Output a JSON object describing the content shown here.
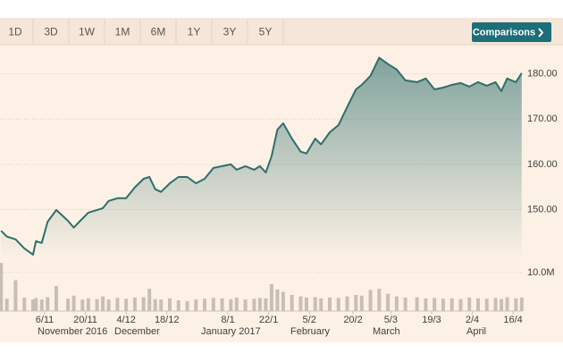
{
  "toolbar": {
    "ranges": [
      "1D",
      "3D",
      "1W",
      "1M",
      "6M",
      "1Y",
      "3Y",
      "5Y"
    ],
    "compare_button": "Comparisons"
  },
  "chart_data": {
    "type": "line",
    "x": [
      "22/10",
      "24/10",
      "27/10",
      "30/10",
      "2/11",
      "3/11",
      "5/11",
      "7/11",
      "10/11",
      "14/11",
      "16/11",
      "19/11",
      "21/11",
      "24/11",
      "26/11",
      "28/11",
      "1/12",
      "4/12",
      "7/12",
      "10/12",
      "12/12",
      "14/12",
      "16/12",
      "19/12",
      "22/12",
      "25/12",
      "28/12",
      "31/12",
      "3/1",
      "6/1",
      "9/1",
      "11/1",
      "14/1",
      "17/1",
      "19/1",
      "21/1",
      "23/1",
      "25/1",
      "27/1",
      "30/1",
      "2/2",
      "4/2",
      "7/2",
      "9/2",
      "12/2",
      "15/2",
      "18/2",
      "21/2",
      "23/2",
      "26/2",
      "1/3",
      "4/3",
      "7/3",
      "10/3",
      "14/3",
      "17/3",
      "20/3",
      "23/3",
      "26/3",
      "29/3",
      "1/4",
      "4/4",
      "7/4",
      "10/4",
      "12/4",
      "14/4",
      "17/4",
      "19/4"
    ],
    "values": [
      145.3,
      144.0,
      143.4,
      141.4,
      140.0,
      143.0,
      142.6,
      147.3,
      149.9,
      147.5,
      146.0,
      148.0,
      149.3,
      149.9,
      150.3,
      151.9,
      152.5,
      152.5,
      154.9,
      156.8,
      157.2,
      154.5,
      153.9,
      155.8,
      157.2,
      157.2,
      155.8,
      156.8,
      159.2,
      159.6,
      160.0,
      158.8,
      159.6,
      158.8,
      159.6,
      158.2,
      161.8,
      167.7,
      169.1,
      165.7,
      162.8,
      162.4,
      165.7,
      164.4,
      167.1,
      168.7,
      172.7,
      176.6,
      177.6,
      179.6,
      183.6,
      182.2,
      181.0,
      178.6,
      178.2,
      179.0,
      176.6,
      177.0,
      177.6,
      178.0,
      177.2,
      178.2,
      177.4,
      178.2,
      176.2,
      179.0,
      178.2,
      180.2
    ],
    "color": "#2e6f6c",
    "ylim": [
      139,
      185.5
    ],
    "yticks": [
      {
        "value": 150,
        "label": "150.00"
      },
      {
        "value": 160,
        "label": "160.00"
      },
      {
        "value": 170,
        "label": "170.00"
      },
      {
        "value": 180,
        "label": "180.00"
      }
    ],
    "xticks": [
      "6/11",
      "20/11",
      "4/12",
      "18/12",
      "8/1",
      "22/1",
      "5/2",
      "20/2",
      "5/3",
      "19/3",
      "2/4",
      "16/4"
    ],
    "month_labels": [
      "November 2016",
      "December",
      "January 2017",
      "February",
      "March",
      "April"
    ],
    "grid": true,
    "volume": {
      "color": "#c9beb6",
      "values": [
        12500000,
        3200000,
        8000000,
        3500000,
        3000000,
        3400000,
        3000000,
        3600000,
        6500000,
        3200000,
        4000000,
        3000000,
        3300000,
        3100000,
        3800000,
        3000000,
        3400000,
        3200000,
        3500000,
        3600000,
        5800000,
        3100000,
        3000000,
        3300000,
        2800000,
        2600000,
        3000000,
        3200000,
        3400000,
        3300000,
        3100000,
        3500000,
        3000000,
        3200000,
        3400000,
        3300000,
        7000000,
        5600000,
        5000000,
        4200000,
        3800000,
        3500000,
        3600000,
        3300000,
        3500000,
        3400000,
        3800000,
        4200000,
        4000000,
        5500000,
        5800000,
        4500000,
        3800000,
        3500000,
        3600000,
        3300000,
        3400000,
        3200000,
        3300000,
        3100000,
        3500000,
        3300000,
        3200000,
        3400000,
        3100000,
        3600000,
        3300000,
        3500000
      ],
      "ylim": [
        0,
        13000000
      ],
      "yticks": [
        {
          "value": 10000000,
          "label": "10.0M"
        }
      ]
    }
  }
}
